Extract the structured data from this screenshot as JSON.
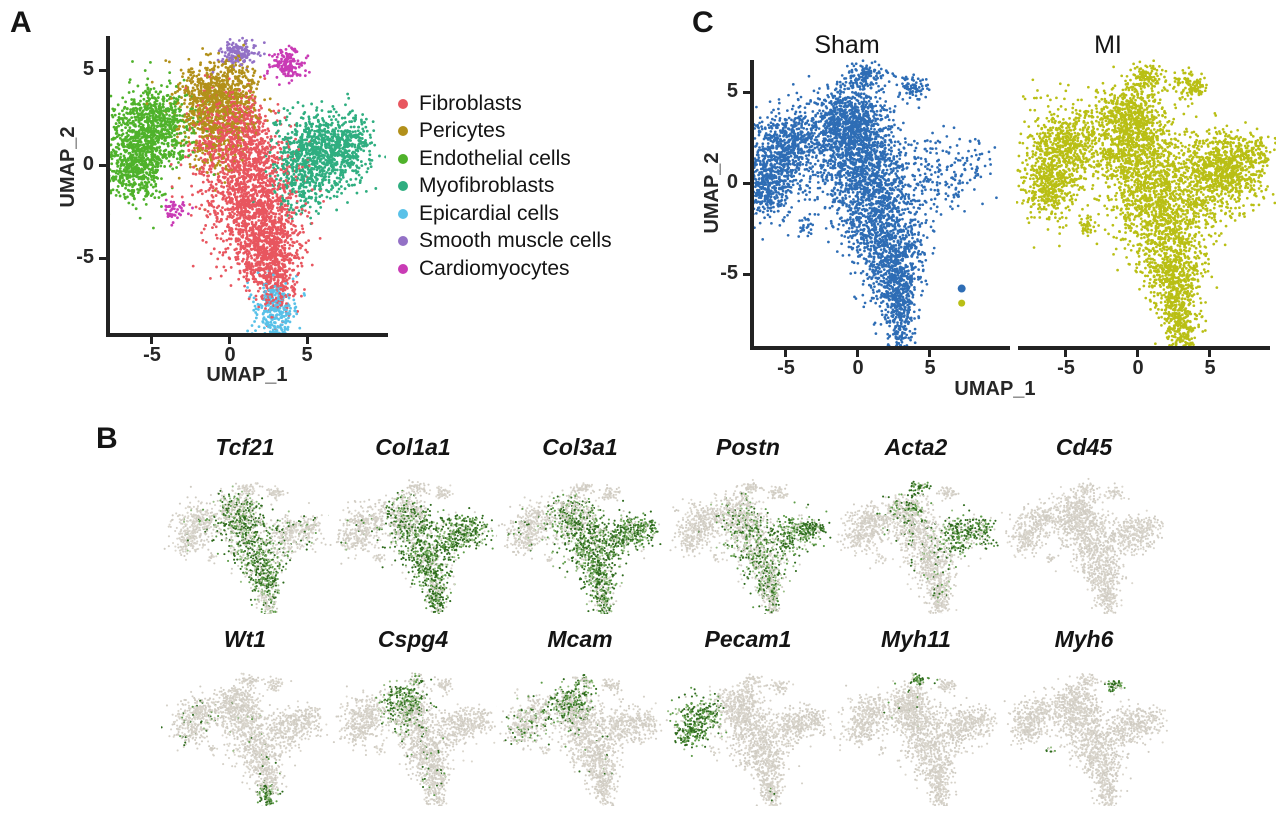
{
  "figure": {
    "panel_a_label": "A",
    "panel_b_label": "B",
    "panel_c_label": "C"
  },
  "chart_data": {
    "umap_axis": {
      "xlabel": "UMAP_1",
      "ylabel": "UMAP_2",
      "xticks": [
        "-5",
        "0",
        "5"
      ],
      "yticks": [
        "5",
        "0",
        "-5"
      ],
      "xrange": [
        -8,
        9.5
      ],
      "yrange": [
        -9.5,
        6.8
      ]
    },
    "clusters": {
      "fibroblasts": {
        "label": "Fibroblasts",
        "color": "#E8565F",
        "n": 2600,
        "blobs": [
          [
            0.2,
            1.6,
            1.35,
            1.15,
            0.2
          ],
          [
            0.9,
            -0.5,
            1.6,
            1.5,
            0.3
          ],
          [
            1.9,
            -2.9,
            1.3,
            1.3,
            0.27
          ],
          [
            2.6,
            -5.0,
            0.95,
            1.0,
            0.17
          ],
          [
            2.9,
            -6.4,
            0.55,
            0.8,
            0.06
          ]
        ]
      },
      "pericytes": {
        "label": "Pericytes",
        "color": "#B2901A",
        "n": 1050,
        "blobs": [
          [
            -1.6,
            3.4,
            1.05,
            0.95,
            0.34
          ],
          [
            -0.2,
            4.0,
            0.95,
            0.8,
            0.28
          ],
          [
            -1.1,
            1.8,
            0.95,
            1.15,
            0.26
          ],
          [
            0.7,
            2.7,
            0.75,
            0.85,
            0.12
          ]
        ]
      },
      "endothelial": {
        "label": "Endothelial cells",
        "color": "#4FB22B",
        "n": 1250,
        "blobs": [
          [
            -5.6,
            1.3,
            1.25,
            1.35,
            0.52
          ],
          [
            -4.4,
            2.3,
            0.95,
            0.9,
            0.24
          ],
          [
            -6.3,
            -0.3,
            0.85,
            0.85,
            0.24
          ]
        ]
      },
      "myofibroblasts": {
        "label": "Myofibroblasts",
        "color": "#2FAE80",
        "n": 1150,
        "blobs": [
          [
            5.4,
            1.0,
            1.2,
            0.95,
            0.38
          ],
          [
            6.9,
            0.6,
            1.15,
            1.0,
            0.3
          ],
          [
            4.5,
            -0.8,
            1.0,
            0.95,
            0.22
          ],
          [
            8.0,
            1.5,
            0.6,
            0.6,
            0.1
          ]
        ]
      },
      "epicardial": {
        "label": "Epicardial cells",
        "color": "#59C1E8",
        "n": 300,
        "blobs": [
          [
            2.8,
            -7.5,
            0.65,
            0.7,
            0.78
          ],
          [
            3.1,
            -8.6,
            0.4,
            0.4,
            0.22
          ]
        ]
      },
      "smc": {
        "label": "Smooth muscle cells",
        "color": "#9371C6",
        "n": 150,
        "blobs": [
          [
            0.6,
            5.9,
            0.6,
            0.35,
            1.0
          ]
        ]
      },
      "cardiomyocytes": {
        "label": "Cardiomyocytes",
        "color": "#C93BB5",
        "n": 200,
        "blobs": [
          [
            3.7,
            5.3,
            0.55,
            0.4,
            0.78
          ],
          [
            -3.6,
            -2.4,
            0.3,
            0.28,
            0.22
          ]
        ]
      }
    },
    "panel_a": {
      "type": "scatter",
      "legend_order": [
        "fibroblasts",
        "pericytes",
        "endothelial",
        "myofibroblasts",
        "epicardial",
        "smc",
        "cardiomyocytes"
      ]
    },
    "panel_b": {
      "type": "feature-plots",
      "base_grays": [
        "#DBD7CE",
        "#D5D1C8",
        "#CFCBC2"
      ],
      "expression_palette": [
        "#2E6B1D",
        "#5E9C49",
        "#98BE85"
      ],
      "genes": [
        {
          "name": "Tcf21",
          "expression": {
            "fibroblasts": 0.8,
            "pericytes": 0.5,
            "epicardial": 0.35,
            "myofibroblasts": 0.15,
            "endothelial": 0.06
          }
        },
        {
          "name": "Col1a1",
          "expression": {
            "fibroblasts": 0.85,
            "myofibroblasts": 0.97,
            "pericytes": 0.3,
            "epicardial": 0.8,
            "endothelial": 0.05
          }
        },
        {
          "name": "Col3a1",
          "expression": {
            "fibroblasts": 0.88,
            "myofibroblasts": 0.97,
            "pericytes": 0.38,
            "epicardial": 0.8,
            "endothelial": 0.08
          }
        },
        {
          "name": "Postn",
          "expression": {
            "fibroblasts": 0.55,
            "myofibroblasts": 0.95,
            "pericytes": 0.2,
            "epicardial": 0.45
          }
        },
        {
          "name": "Acta2",
          "expression": {
            "myofibroblasts": 0.85,
            "smc": 1.0,
            "pericytes": 0.4,
            "fibroblasts": 0.12
          }
        },
        {
          "name": "Cd45",
          "expression": {}
        },
        {
          "name": "Wt1",
          "expression": {
            "epicardial": 1.0,
            "endothelial": 0.12,
            "fibroblasts": 0.04
          }
        },
        {
          "name": "Cspg4",
          "expression": {
            "pericytes": 0.85,
            "smc": 0.55,
            "fibroblasts": 0.05
          }
        },
        {
          "name": "Mcam",
          "expression": {
            "pericytes": 0.78,
            "smc": 0.55,
            "endothelial": 0.22,
            "fibroblasts": 0.04
          }
        },
        {
          "name": "Pecam1",
          "expression": {
            "endothelial": 0.95,
            "epicardial": 0.08
          }
        },
        {
          "name": "Myh11",
          "expression": {
            "smc": 1.0,
            "pericytes": 0.07
          }
        },
        {
          "name": "Myh6",
          "expression": {
            "cardiomyocytes": 0.9
          }
        }
      ]
    },
    "panel_c": {
      "type": "scatter-split",
      "groups": [
        {
          "label": "Sham",
          "color": "#2E6DB5",
          "weights": {
            "fibroblasts": 1.0,
            "pericytes": 1.05,
            "endothelial": 1.0,
            "myofibroblasts": 0.2,
            "epicardial": 0.6,
            "smc": 0.9,
            "cardiomyocytes": 0.6
          },
          "outliers": [
            [
              7.2,
              -5.8,
              4,
              "#2E6DB5"
            ],
            [
              7.2,
              -6.6,
              3.5,
              "#B9BF15"
            ]
          ]
        },
        {
          "label": "MI",
          "color": "#B9BF15",
          "weights": {
            "fibroblasts": 0.85,
            "pericytes": 0.8,
            "endothelial": 0.9,
            "myofibroblasts": 1.05,
            "epicardial": 1.0,
            "smc": 0.85,
            "cardiomyocytes": 0.9
          },
          "outliers": []
        }
      ]
    }
  }
}
